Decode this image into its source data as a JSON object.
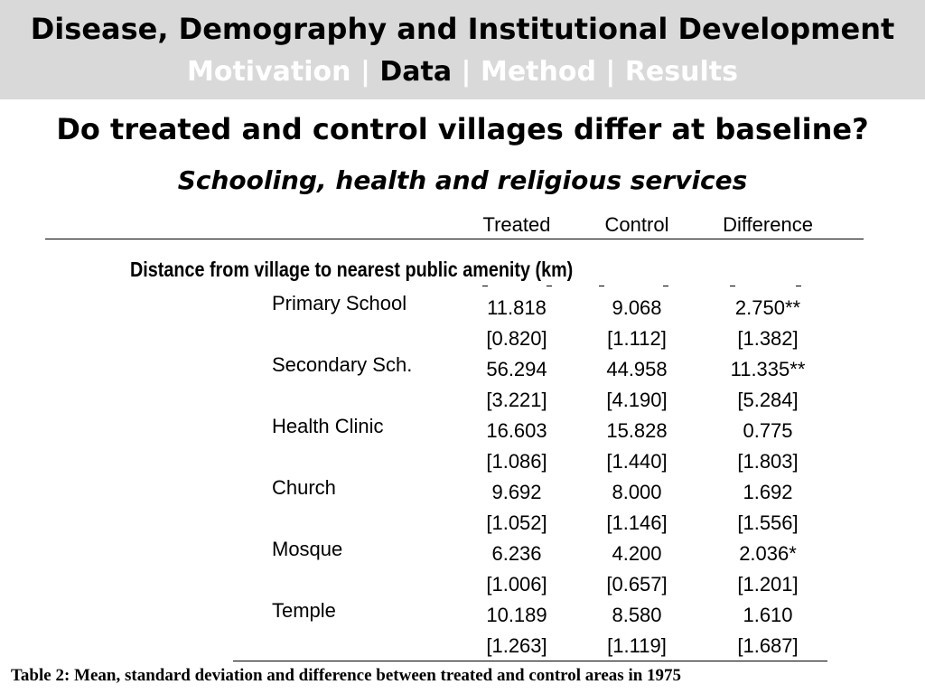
{
  "header": {
    "title": "Disease, Demography and Institutional Development",
    "nav": [
      "Motivation",
      "Data",
      "Method",
      "Results"
    ],
    "nav_separator": "|",
    "active_nav": "Data"
  },
  "slide": {
    "title": "Do treated and control villages differ at baseline?",
    "subtitle": "Schooling, health and religious services"
  },
  "table": {
    "columns": [
      "Treated",
      "Control",
      "Difference"
    ],
    "section_label": "Distance from village to nearest public amenity (km)",
    "rows": [
      {
        "label": "Primary School",
        "treated": "11.818",
        "control": "9.068",
        "difference": "2.750**",
        "treated_sd": "[0.820]",
        "control_sd": "[1.112]",
        "difference_sd": "[1.382]"
      },
      {
        "label": "Secondary Sch.",
        "treated": "56.294",
        "control": "44.958",
        "difference": "11.335**",
        "treated_sd": "[3.221]",
        "control_sd": "[4.190]",
        "difference_sd": "[5.284]"
      },
      {
        "label": "Health Clinic",
        "treated": "16.603",
        "control": "15.828",
        "difference": "0.775",
        "treated_sd": "[1.086]",
        "control_sd": "[1.440]",
        "difference_sd": "[1.803]"
      },
      {
        "label": "Church",
        "treated": "9.692",
        "control": "8.000",
        "difference": "1.692",
        "treated_sd": "[1.052]",
        "control_sd": "[1.146]",
        "difference_sd": "[1.556]"
      },
      {
        "label": "Mosque",
        "treated": "6.236",
        "control": "4.200",
        "difference": "2.036*",
        "treated_sd": "[1.006]",
        "control_sd": "[0.657]",
        "difference_sd": "[1.201]"
      },
      {
        "label": "Temple",
        "treated": "10.189",
        "control": "8.580",
        "difference": "1.610",
        "treated_sd": "[1.263]",
        "control_sd": "[1.119]",
        "difference_sd": "[1.687]"
      }
    ],
    "caption": "Table 2:  Mean, standard deviation and difference between treated and control areas in 1975"
  },
  "colors": {
    "header_background": "#d9d9d9",
    "nav_inactive": "#ffffff",
    "nav_active": "#000000"
  }
}
